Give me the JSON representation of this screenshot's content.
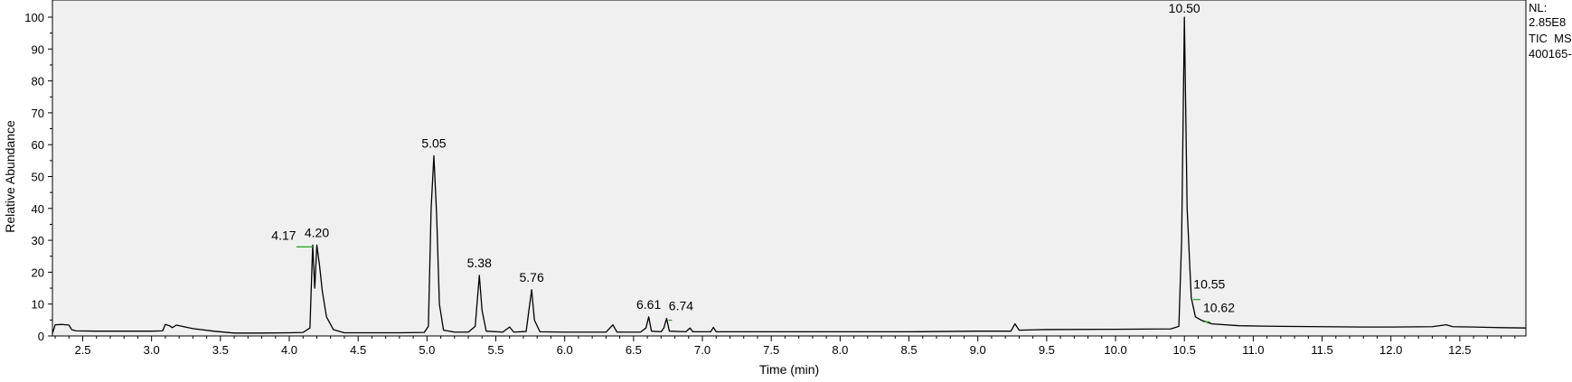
{
  "chart_data": {
    "type": "line",
    "xlabel": "Time (min)",
    "ylabel": "Relative Abundance",
    "xlim": [
      2.28,
      12.98
    ],
    "ylim": [
      0,
      100
    ],
    "x_ticks": [
      "2.5",
      "3.0",
      "3.5",
      "4.0",
      "4.5",
      "5.0",
      "5.5",
      "6.0",
      "6.5",
      "7.0",
      "7.5",
      "8.0",
      "8.5",
      "9.0",
      "9.5",
      "10.0",
      "10.5",
      "11.0",
      "11.5",
      "12.0",
      "12.5"
    ],
    "y_ticks": [
      "0",
      "10",
      "20",
      "30",
      "40",
      "50",
      "60",
      "70",
      "80",
      "90",
      "100"
    ],
    "grid": false,
    "legend": "none",
    "info_text": [
      "NL:",
      "2.85E8",
      "TIC  MS",
      "400165-"
    ],
    "series": [
      {
        "points": [
          [
            2.28,
            0.8
          ],
          [
            2.3,
            3.5
          ],
          [
            2.35,
            3.6
          ],
          [
            2.4,
            3.4
          ],
          [
            2.42,
            2.0
          ],
          [
            2.45,
            1.6
          ],
          [
            2.6,
            1.5
          ],
          [
            2.8,
            1.5
          ],
          [
            3.0,
            1.5
          ],
          [
            3.08,
            1.6
          ],
          [
            3.1,
            3.6
          ],
          [
            3.13,
            3.2
          ],
          [
            3.15,
            2.6
          ],
          [
            3.18,
            3.4
          ],
          [
            3.3,
            2.3
          ],
          [
            3.45,
            1.5
          ],
          [
            3.6,
            0.9
          ],
          [
            3.8,
            0.9
          ],
          [
            4.0,
            1.0
          ],
          [
            4.1,
            1.1
          ],
          [
            4.15,
            2.5
          ],
          [
            4.17,
            28.5
          ],
          [
            4.185,
            15.0
          ],
          [
            4.2,
            28.5
          ],
          [
            4.22,
            22.0
          ],
          [
            4.24,
            14.0
          ],
          [
            4.27,
            6.0
          ],
          [
            4.32,
            2.0
          ],
          [
            4.4,
            1.0
          ],
          [
            4.6,
            1.0
          ],
          [
            4.8,
            1.0
          ],
          [
            4.98,
            1.1
          ],
          [
            5.01,
            3.0
          ],
          [
            5.03,
            40.0
          ],
          [
            5.05,
            56.5
          ],
          [
            5.07,
            38.0
          ],
          [
            5.09,
            10.0
          ],
          [
            5.12,
            1.8
          ],
          [
            5.2,
            1.2
          ],
          [
            5.3,
            1.2
          ],
          [
            5.35,
            3.0
          ],
          [
            5.38,
            19.0
          ],
          [
            5.4,
            8.0
          ],
          [
            5.43,
            1.5
          ],
          [
            5.55,
            1.2
          ],
          [
            5.6,
            2.8
          ],
          [
            5.63,
            1.2
          ],
          [
            5.72,
            1.4
          ],
          [
            5.74,
            8.0
          ],
          [
            5.76,
            14.5
          ],
          [
            5.78,
            5.0
          ],
          [
            5.82,
            1.3
          ],
          [
            6.0,
            1.2
          ],
          [
            6.3,
            1.2
          ],
          [
            6.35,
            3.5
          ],
          [
            6.38,
            1.2
          ],
          [
            6.55,
            1.2
          ],
          [
            6.59,
            2.5
          ],
          [
            6.61,
            6.0
          ],
          [
            6.63,
            1.5
          ],
          [
            6.7,
            1.3
          ],
          [
            6.72,
            2.5
          ],
          [
            6.74,
            5.5
          ],
          [
            6.76,
            1.5
          ],
          [
            6.88,
            1.3
          ],
          [
            6.91,
            2.5
          ],
          [
            6.93,
            1.3
          ],
          [
            7.06,
            1.3
          ],
          [
            7.08,
            2.7
          ],
          [
            7.1,
            1.3
          ],
          [
            7.5,
            1.3
          ],
          [
            8.0,
            1.3
          ],
          [
            8.5,
            1.3
          ],
          [
            9.0,
            1.5
          ],
          [
            9.24,
            1.5
          ],
          [
            9.27,
            3.8
          ],
          [
            9.3,
            1.8
          ],
          [
            9.5,
            2.0
          ],
          [
            10.0,
            2.1
          ],
          [
            10.4,
            2.2
          ],
          [
            10.46,
            3.0
          ],
          [
            10.48,
            30.0
          ],
          [
            10.5,
            100.0
          ],
          [
            10.52,
            40.0
          ],
          [
            10.55,
            12.0
          ],
          [
            10.58,
            6.0
          ],
          [
            10.62,
            5.0
          ],
          [
            10.7,
            3.8
          ],
          [
            10.9,
            3.2
          ],
          [
            11.2,
            3.0
          ],
          [
            11.5,
            2.9
          ],
          [
            11.8,
            2.8
          ],
          [
            12.0,
            2.8
          ],
          [
            12.3,
            2.9
          ],
          [
            12.4,
            3.5
          ],
          [
            12.45,
            2.9
          ],
          [
            12.6,
            2.8
          ],
          [
            12.8,
            2.6
          ],
          [
            12.98,
            2.5
          ]
        ]
      }
    ],
    "annotations": [
      {
        "text": "4.17",
        "x": 4.17,
        "y": 28.5
      },
      {
        "text": "4.20",
        "x": 4.2,
        "y": 28.5
      },
      {
        "text": "5.05",
        "x": 5.05,
        "y": 56.5
      },
      {
        "text": "5.38",
        "x": 5.38,
        "y": 19.0
      },
      {
        "text": "5.76",
        "x": 5.76,
        "y": 14.5
      },
      {
        "text": "6.61",
        "x": 6.61,
        "y": 6.0
      },
      {
        "text": "6.74",
        "x": 6.74,
        "y": 5.5
      },
      {
        "text": "10.50",
        "x": 10.5,
        "y": 100.0
      },
      {
        "text": "10.55",
        "x": 10.55,
        "y": 12.0
      },
      {
        "text": "10.62",
        "x": 10.62,
        "y": 5.0
      }
    ],
    "colors": {
      "plot_background": "#f0f0f0",
      "trace": "#000000",
      "leader": "#1aa51a"
    }
  }
}
